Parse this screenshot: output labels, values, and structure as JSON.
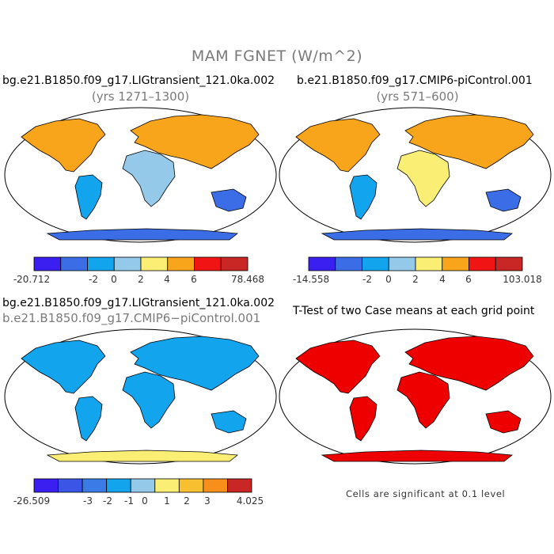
{
  "figure": {
    "title": "MAM FGNET (W/m^2)",
    "note": "Cells are significant at 0.1 level"
  },
  "chart_data": [
    {
      "type": "heatmap",
      "title": "bg.e21.B1850.f09_g17.LIGtransient_121.0ka.002",
      "subtitle": "(yrs 1271–1300)",
      "colorbar": {
        "min_label": "-20.712",
        "max_label": "78.468",
        "tick_labels": [
          "-2",
          "0",
          "2",
          "4",
          "6"
        ],
        "colors": [
          "#3a1ff0",
          "#3b6ee6",
          "#13a4ee",
          "#95c9ea",
          "#faef74",
          "#f8a51b",
          "#f01414",
          "#c92626"
        ]
      },
      "regions": [
        {
          "name": "North America",
          "value": 6
        },
        {
          "name": "Eurasia",
          "value": 6
        },
        {
          "name": "Africa",
          "value": 3
        },
        {
          "name": "South America",
          "value": 0
        },
        {
          "name": "Australia",
          "value": -2
        },
        {
          "name": "Antarctica",
          "value": -2
        }
      ]
    },
    {
      "type": "heatmap",
      "title": "b.e21.B1850.f09_g17.CMIP6-piControl.001",
      "subtitle": "(yrs 571–600)",
      "colorbar": {
        "min_label": "-14.558",
        "max_label": "103.018",
        "tick_labels": [
          "-2",
          "0",
          "2",
          "4",
          "6"
        ],
        "colors": [
          "#3a1ff0",
          "#3b6ee6",
          "#13a4ee",
          "#95c9ea",
          "#faef74",
          "#f8a51b",
          "#f01414",
          "#c92626"
        ]
      },
      "regions": [
        {
          "name": "North America",
          "value": 7
        },
        {
          "name": "Eurasia",
          "value": 7
        },
        {
          "name": "Africa",
          "value": 4
        },
        {
          "name": "South America",
          "value": 0
        },
        {
          "name": "Australia",
          "value": -2
        },
        {
          "name": "Antarctica",
          "value": -2
        }
      ]
    },
    {
      "type": "heatmap",
      "title": "bg.e21.B1850.f09_g17.LIGtransient_121.0ka.002",
      "subtitle": "b.e21.B1850.f09_g17.CMIP6−piControl.001",
      "colorbar": {
        "min_label": "-26.509",
        "max_label": "4.025",
        "tick_labels": [
          "-3",
          "-2",
          "-1",
          "0",
          "1",
          "2",
          "3"
        ],
        "colors": [
          "#3a1ff0",
          "#3b56e6",
          "#3b7be6",
          "#13a4ee",
          "#95c9ea",
          "#faef74",
          "#f8c030",
          "#f88f1b",
          "#c92626"
        ]
      },
      "regions": [
        {
          "name": "North America",
          "value": -1
        },
        {
          "name": "Eurasia",
          "value": -1
        },
        {
          "name": "Africa",
          "value": -1
        },
        {
          "name": "South America",
          "value": -0.5
        },
        {
          "name": "Australia",
          "value": -0.5
        },
        {
          "name": "Antarctica",
          "value": 1
        }
      ]
    },
    {
      "type": "heatmap",
      "title": "T-Test of two Case means at each grid point",
      "significance_color": "#ee0000",
      "significance_level": 0.1
    }
  ]
}
